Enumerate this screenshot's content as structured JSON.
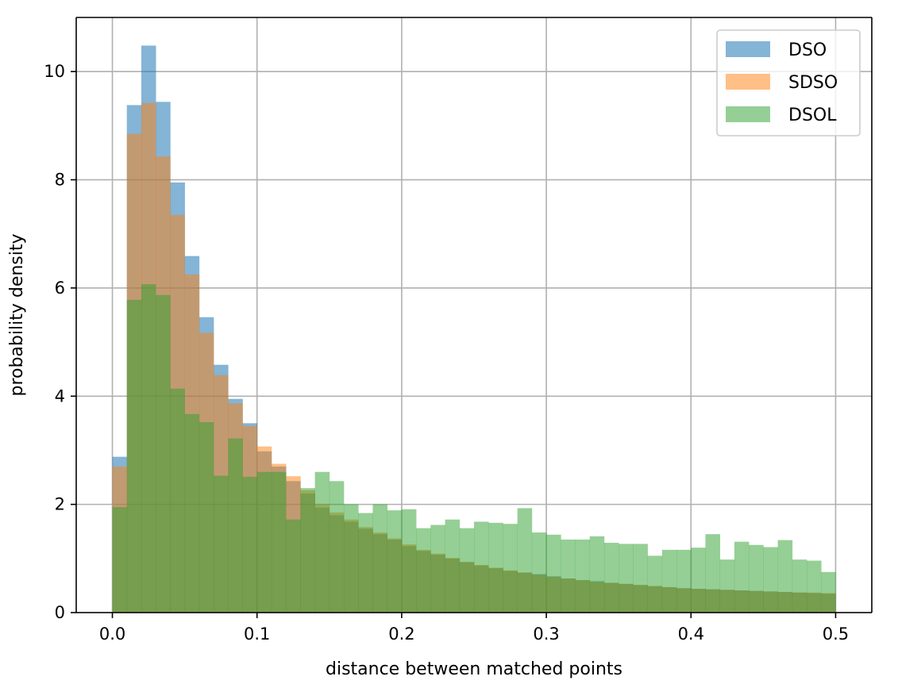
{
  "chart_data": {
    "type": "bar",
    "subtype": "histogram",
    "title": "",
    "xlabel": "distance between matched points",
    "ylabel": "probability density",
    "xlim": [
      -0.025,
      0.525
    ],
    "ylim": [
      0,
      11
    ],
    "grid": true,
    "legend_position": "top-right",
    "xticks": [
      0.0,
      0.1,
      0.2,
      0.3,
      0.4,
      0.5
    ],
    "xtick_labels": [
      "0.0",
      "0.1",
      "0.2",
      "0.3",
      "0.4",
      "0.5"
    ],
    "yticks": [
      0,
      2,
      4,
      6,
      8,
      10
    ],
    "ytick_labels": [
      "0",
      "2",
      "4",
      "6",
      "8",
      "10"
    ],
    "bin_edges_start": 0.0,
    "bin_width": 0.01,
    "series": [
      {
        "name": "DSO",
        "color": "#1f77b4",
        "opacity": 0.55,
        "values": [
          2.88,
          9.38,
          10.48,
          9.44,
          7.95,
          6.59,
          5.46,
          4.58,
          3.95,
          3.5,
          2.98,
          2.7,
          2.43,
          2.2,
          1.94,
          1.8,
          1.68,
          1.55,
          1.45,
          1.35,
          1.23,
          1.14,
          1.07,
          1.0,
          0.93,
          0.87,
          0.82,
          0.77,
          0.74,
          0.71,
          0.67,
          0.63,
          0.6,
          0.58,
          0.55,
          0.53,
          0.51,
          0.49,
          0.47,
          0.45,
          0.44,
          0.43,
          0.42,
          0.41,
          0.4,
          0.39,
          0.38,
          0.37,
          0.36,
          0.35
        ]
      },
      {
        "name": "SDSO",
        "color": "#ff7f0e",
        "opacity": 0.5,
        "values": [
          2.7,
          8.85,
          9.42,
          8.43,
          7.35,
          6.25,
          5.17,
          4.39,
          3.87,
          3.45,
          3.07,
          2.75,
          2.52,
          2.26,
          2.0,
          1.85,
          1.72,
          1.58,
          1.48,
          1.37,
          1.26,
          1.16,
          1.09,
          1.01,
          0.94,
          0.88,
          0.83,
          0.78,
          0.74,
          0.7,
          0.66,
          0.63,
          0.6,
          0.57,
          0.55,
          0.53,
          0.51,
          0.49,
          0.47,
          0.45,
          0.44,
          0.43,
          0.42,
          0.41,
          0.4,
          0.39,
          0.38,
          0.37,
          0.37,
          0.36
        ]
      },
      {
        "name": "DSOL",
        "color": "#2ca02c",
        "opacity": 0.5,
        "values": [
          1.95,
          5.78,
          6.07,
          5.87,
          4.14,
          3.67,
          3.52,
          2.53,
          3.22,
          2.51,
          2.6,
          2.6,
          1.72,
          2.3,
          2.6,
          2.43,
          2.0,
          1.84,
          2.0,
          1.89,
          1.91,
          1.56,
          1.62,
          1.72,
          1.56,
          1.68,
          1.66,
          1.64,
          1.93,
          1.48,
          1.44,
          1.35,
          1.35,
          1.41,
          1.29,
          1.27,
          1.27,
          1.05,
          1.16,
          1.16,
          1.2,
          1.45,
          0.98,
          1.31,
          1.25,
          1.21,
          1.34,
          0.98,
          0.96,
          0.75
        ]
      }
    ]
  }
}
